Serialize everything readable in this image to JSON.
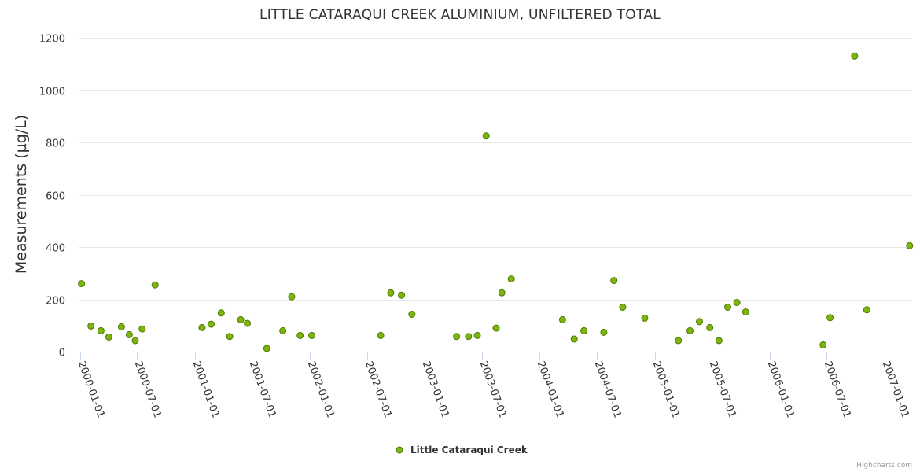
{
  "chart_data": {
    "type": "scatter",
    "title": "LITTLE CATARAQUI CREEK ALUMINIUM, UNFILTERED TOTAL",
    "ylabel": "Measurements (µg/L)",
    "xlabel": "",
    "ylim": [
      0,
      1200
    ],
    "yticks": [
      0,
      200,
      400,
      600,
      800,
      1000,
      1200
    ],
    "xlim": [
      "1999-12-28",
      "2007-03-30"
    ],
    "xticks": [
      "2000-01-01",
      "2000-07-01",
      "2001-01-01",
      "2001-07-01",
      "2002-01-01",
      "2002-07-01",
      "2003-01-01",
      "2003-07-01",
      "2004-01-01",
      "2004-07-01",
      "2005-01-01",
      "2005-07-01",
      "2006-01-01",
      "2006-07-01",
      "2007-01-01"
    ],
    "grid": true,
    "legend": "bottom-center",
    "marker_color": "#7cb50f",
    "marker_stroke": "#4f7a00",
    "series": [
      {
        "name": "Little Cataraqui Creek",
        "points": [
          {
            "x": "2000-01-06",
            "y": 260
          },
          {
            "x": "2000-02-05",
            "y": 98
          },
          {
            "x": "2000-03-08",
            "y": 80
          },
          {
            "x": "2000-04-02",
            "y": 56
          },
          {
            "x": "2000-05-12",
            "y": 95
          },
          {
            "x": "2000-06-06",
            "y": 65
          },
          {
            "x": "2000-06-25",
            "y": 42
          },
          {
            "x": "2000-07-17",
            "y": 87
          },
          {
            "x": "2000-08-27",
            "y": 255
          },
          {
            "x": "2001-01-23",
            "y": 92
          },
          {
            "x": "2001-02-21",
            "y": 105
          },
          {
            "x": "2001-03-25",
            "y": 148
          },
          {
            "x": "2001-04-21",
            "y": 58
          },
          {
            "x": "2001-05-26",
            "y": 122
          },
          {
            "x": "2001-06-16",
            "y": 108
          },
          {
            "x": "2001-08-17",
            "y": 12
          },
          {
            "x": "2001-10-07",
            "y": 80
          },
          {
            "x": "2001-11-04",
            "y": 210
          },
          {
            "x": "2001-12-01",
            "y": 62
          },
          {
            "x": "2002-01-07",
            "y": 62
          },
          {
            "x": "2002-08-14",
            "y": 62
          },
          {
            "x": "2002-09-15",
            "y": 225
          },
          {
            "x": "2002-10-19",
            "y": 216
          },
          {
            "x": "2002-11-21",
            "y": 143
          },
          {
            "x": "2003-04-12",
            "y": 58
          },
          {
            "x": "2003-05-20",
            "y": 58
          },
          {
            "x": "2003-06-17",
            "y": 62
          },
          {
            "x": "2003-07-15",
            "y": 825
          },
          {
            "x": "2003-08-16",
            "y": 90
          },
          {
            "x": "2003-09-03",
            "y": 225
          },
          {
            "x": "2003-10-03",
            "y": 278
          },
          {
            "x": "2004-03-14",
            "y": 122
          },
          {
            "x": "2004-04-20",
            "y": 48
          },
          {
            "x": "2004-05-21",
            "y": 80
          },
          {
            "x": "2004-07-23",
            "y": 74
          },
          {
            "x": "2004-08-24",
            "y": 272
          },
          {
            "x": "2004-09-21",
            "y": 170
          },
          {
            "x": "2004-11-30",
            "y": 128
          },
          {
            "x": "2005-03-17",
            "y": 42
          },
          {
            "x": "2005-04-23",
            "y": 80
          },
          {
            "x": "2005-05-23",
            "y": 115
          },
          {
            "x": "2005-06-25",
            "y": 92
          },
          {
            "x": "2005-07-24",
            "y": 42
          },
          {
            "x": "2005-08-21",
            "y": 170
          },
          {
            "x": "2005-09-19",
            "y": 188
          },
          {
            "x": "2005-10-17",
            "y": 152
          },
          {
            "x": "2006-06-20",
            "y": 26
          },
          {
            "x": "2006-07-12",
            "y": 130
          },
          {
            "x": "2006-09-28",
            "y": 1130
          },
          {
            "x": "2006-11-06",
            "y": 160
          },
          {
            "x": "2007-03-22",
            "y": 405
          }
        ]
      }
    ]
  },
  "credits": "Highcharts.com"
}
